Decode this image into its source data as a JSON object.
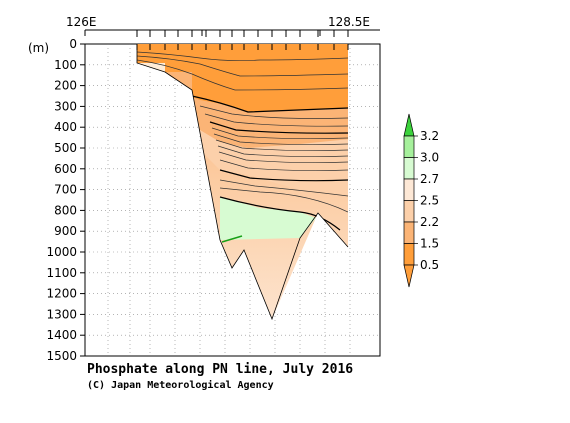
{
  "chart_data": {
    "type": "contour-section",
    "title": "Phosphate along PN line, July 2016",
    "credit": "(C) Japan Meteorological Agency",
    "ylabel": "(m)",
    "ylim": [
      1500,
      0
    ],
    "yticks": [
      0,
      100,
      200,
      300,
      400,
      500,
      600,
      700,
      800,
      900,
      1000,
      1100,
      1200,
      1300,
      1400,
      1500
    ],
    "x_tick_labels": [
      "126E",
      "128.5E"
    ],
    "grid": true,
    "legend_position": "right",
    "color_levels": [
      {
        "value": 0.5,
        "color": "#ff9e3a"
      },
      {
        "value": 1.5,
        "color": "#fbb476"
      },
      {
        "value": 2.2,
        "color": "#fcd0aa"
      },
      {
        "value": 2.5,
        "color": "#fde8d6"
      },
      {
        "value": 2.7,
        "color": "#d7fbd2"
      },
      {
        "value": 3.0,
        "color": "#a6f09c"
      },
      {
        "value": 3.2,
        "color": "#3cd23c"
      }
    ],
    "legend_labels": [
      "0.5",
      "1.5",
      "2.2",
      "2.5",
      "2.7",
      "3.0",
      "3.2"
    ]
  }
}
